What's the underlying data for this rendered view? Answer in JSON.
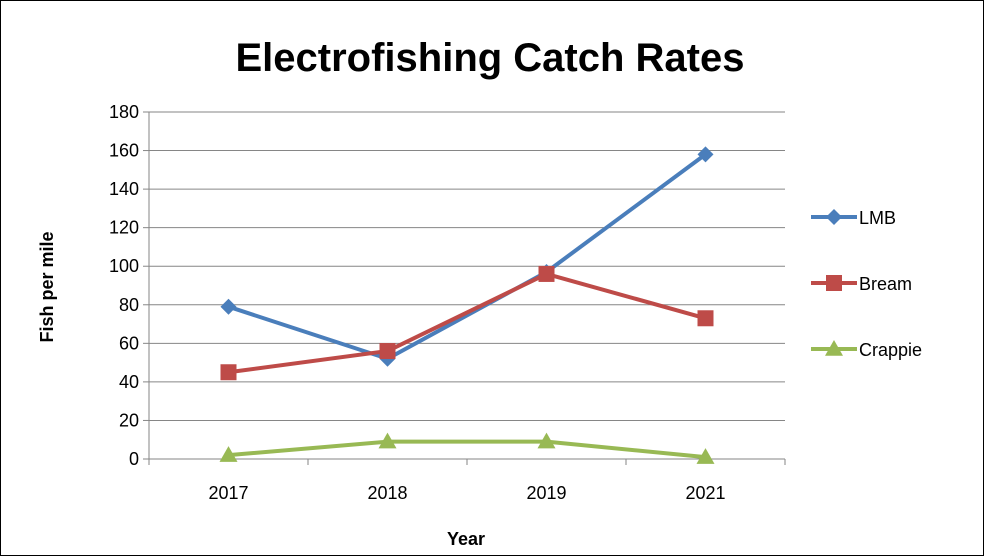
{
  "chart_data": {
    "type": "line",
    "title": "Electrofishing Catch Rates",
    "xlabel": "Year",
    "ylabel": "Fish per mile",
    "categories": [
      "2017",
      "2018",
      "2019",
      "2021"
    ],
    "ylim": [
      0,
      180
    ],
    "y_ticks": [
      0,
      20,
      40,
      60,
      80,
      100,
      120,
      140,
      160,
      180
    ],
    "grid": true,
    "legend_position": "right",
    "series": [
      {
        "name": "LMB",
        "values": [
          79,
          52,
          97,
          158
        ],
        "color": "#4a7ebb",
        "marker": "diamond"
      },
      {
        "name": "Bream",
        "values": [
          45,
          56,
          96,
          73
        ],
        "color": "#be4b48",
        "marker": "square"
      },
      {
        "name": "Crappie",
        "values": [
          2,
          9,
          9,
          1
        ],
        "color": "#98b954",
        "marker": "triangle"
      }
    ]
  }
}
